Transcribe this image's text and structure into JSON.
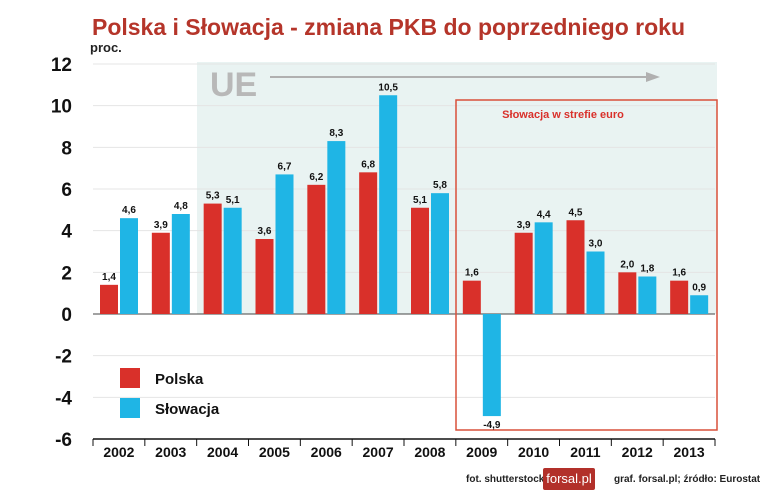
{
  "chart_data": {
    "type": "bar",
    "title": "Polska i Słowacja - zmiana PKB do poprzedniego roku",
    "ylabel": "proc.",
    "ylim": [
      -6,
      12
    ],
    "yticks": [
      12,
      10,
      8,
      6,
      4,
      2,
      0,
      -2,
      -4,
      -6
    ],
    "categories": [
      "2002",
      "2003",
      "2004",
      "2005",
      "2006",
      "2007",
      "2008",
      "2009",
      "2010",
      "2011",
      "2012",
      "2013"
    ],
    "series": [
      {
        "name": "Polska",
        "color": "#d9302a",
        "values": [
          1.4,
          3.9,
          5.3,
          3.6,
          6.2,
          6.8,
          5.1,
          1.6,
          3.9,
          4.5,
          2.0,
          1.6
        ],
        "labels": [
          "1,4",
          "3,9",
          "5,3",
          "3,6",
          "6,2",
          "6,8",
          "5,1",
          "1,6",
          "3,9",
          "4,5",
          "2,0",
          "1,6"
        ]
      },
      {
        "name": "Słowacja",
        "color": "#1fb5e5",
        "values": [
          4.6,
          4.8,
          5.1,
          6.7,
          8.3,
          10.5,
          5.8,
          -4.9,
          4.4,
          3.0,
          1.8,
          0.9
        ],
        "labels": [
          "4,6",
          "4,8",
          "5,1",
          "6,7",
          "8,3",
          "10,5",
          "5,8",
          "-4,9",
          "4,4",
          "3,0",
          "1,8",
          "0,9"
        ]
      }
    ],
    "annotations": {
      "eu_label": "UE",
      "euro_box": "Słowacja w strefie euro"
    },
    "legend_position": "bottom-left",
    "grid": true
  },
  "footer": {
    "photo": "fot. shutterstock",
    "logo": "forsal.pl",
    "source": "graf. forsal.pl;  źródło: Eurostat"
  }
}
